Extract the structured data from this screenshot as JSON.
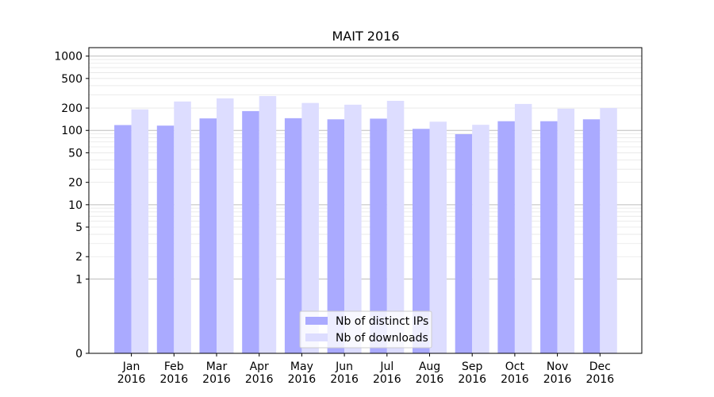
{
  "chart_data": {
    "type": "bar",
    "title": "MAIT 2016",
    "xlabel": "",
    "ylabel": "",
    "scale": "symlog",
    "categories": [
      [
        "Jan",
        "2016"
      ],
      [
        "Feb",
        "2016"
      ],
      [
        "Mar",
        "2016"
      ],
      [
        "Apr",
        "2016"
      ],
      [
        "May",
        "2016"
      ],
      [
        "Jun",
        "2016"
      ],
      [
        "Jul",
        "2016"
      ],
      [
        "Aug",
        "2016"
      ],
      [
        "Sep",
        "2016"
      ],
      [
        "Oct",
        "2016"
      ],
      [
        "Nov",
        "2016"
      ],
      [
        "Dec",
        "2016"
      ]
    ],
    "series": [
      {
        "name": "Nb of distinct IPs",
        "color": "#aaaaff",
        "values": [
          118,
          116,
          145,
          182,
          146,
          141,
          144,
          105,
          89,
          133,
          133,
          141
        ]
      },
      {
        "name": "Nb of downloads",
        "color": "#ddddff",
        "values": [
          192,
          245,
          270,
          290,
          234,
          222,
          250,
          131,
          119,
          227,
          196,
          200
        ]
      }
    ],
    "yticks": [
      0,
      1,
      2,
      5,
      10,
      20,
      50,
      100,
      200,
      500,
      1000
    ],
    "ylim": [
      0,
      1300
    ],
    "grid": true,
    "legend_position": "bottom-center"
  }
}
